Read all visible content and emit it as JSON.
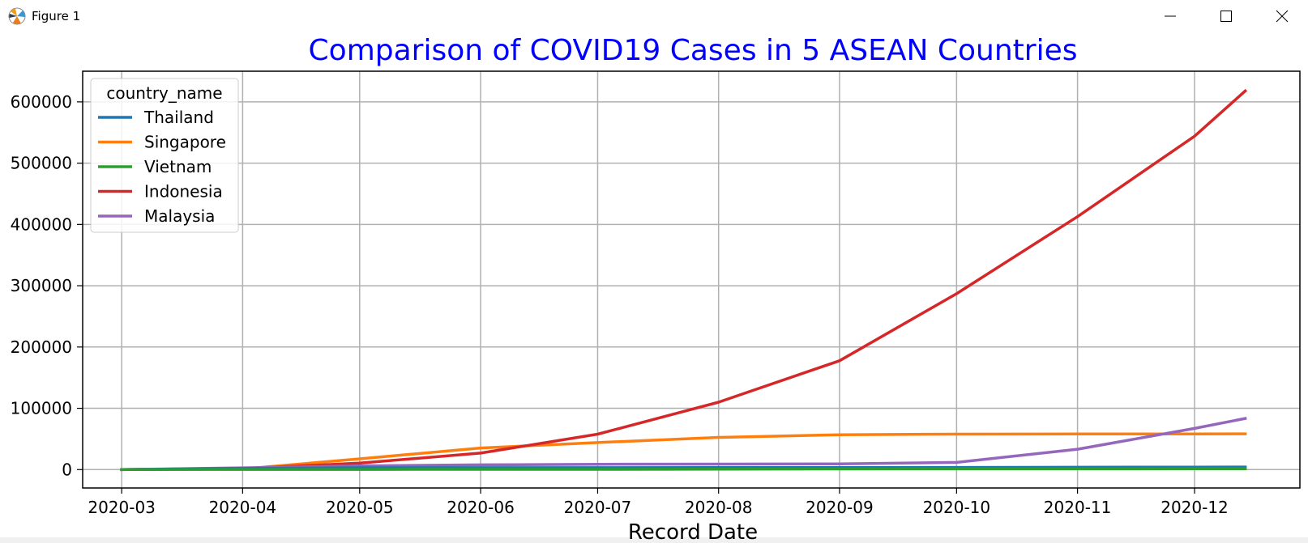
{
  "window": {
    "title": "Figure 1",
    "app_icon": "matplotlib-icon",
    "controls": [
      "minimize-icon",
      "maximize-icon",
      "close-icon"
    ]
  },
  "chart_data": {
    "type": "line",
    "title": "Comparison of COVID19 Cases in 5 ASEAN Countries",
    "title_color": "#0000ff",
    "xlabel": "Record Date",
    "ylabel": "",
    "x_ticks": [
      "2020-03",
      "2020-04",
      "2020-05",
      "2020-06",
      "2020-07",
      "2020-08",
      "2020-09",
      "2020-10",
      "2020-11",
      "2020-12"
    ],
    "y_ticks": [
      "0",
      "100000",
      "200000",
      "300000",
      "400000",
      "500000",
      "600000"
    ],
    "xlim": [
      "2020-02-20",
      "2020-12-28"
    ],
    "ylim": [
      -30000,
      650000
    ],
    "grid": true,
    "legend": {
      "title": "country_name",
      "position": "top-left"
    },
    "x": [
      "2020-03-01",
      "2020-04-01",
      "2020-05-01",
      "2020-06-01",
      "2020-07-01",
      "2020-08-01",
      "2020-09-01",
      "2020-10-01",
      "2020-11-01",
      "2020-12-01",
      "2020-12-14"
    ],
    "series": [
      {
        "name": "Thailand",
        "color": "#1f77b4",
        "values": [
          42,
          1771,
          2954,
          3083,
          3173,
          3317,
          3411,
          3564,
          3780,
          4008,
          4246
        ]
      },
      {
        "name": "Singapore",
        "color": "#ff7f0e",
        "values": [
          106,
          1000,
          17548,
          35292,
          44122,
          52512,
          56852,
          57742,
          58019,
          58228,
          58341
        ]
      },
      {
        "name": "Vietnam",
        "color": "#2ca02c",
        "values": [
          16,
          218,
          270,
          328,
          355,
          586,
          1046,
          1098,
          1206,
          1347,
          1402
        ]
      },
      {
        "name": "Indonesia",
        "color": "#d62728",
        "values": [
          0,
          1677,
          10551,
          26940,
          57770,
          109936,
          177571,
          287008,
          412784,
          543975,
          617820
        ]
      },
      {
        "name": "Malaysia",
        "color": "#9467bd",
        "values": [
          29,
          2908,
          6002,
          7819,
          8639,
          8976,
          9354,
          11771,
          33205,
          67169,
          83475
        ]
      }
    ]
  }
}
